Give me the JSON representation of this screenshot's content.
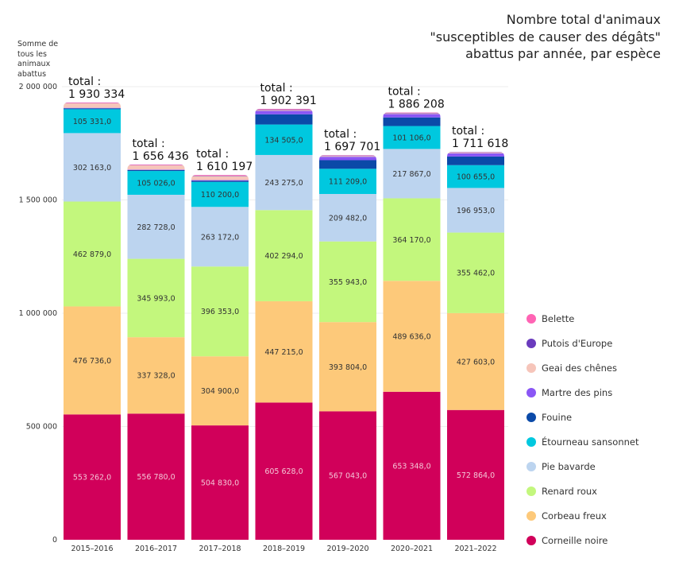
{
  "chart_data": {
    "type": "bar",
    "stacked": true,
    "title": [
      "Nombre total d'animaux",
      "\"susceptibles de causer des dégâts\"",
      "abattus par année, par espèce"
    ],
    "ylabel": "Somme de tous les animaux abattus",
    "ylim": [
      0,
      2000000
    ],
    "yticks": [
      0,
      500000,
      1000000,
      1500000,
      2000000
    ],
    "ytick_labels": [
      "0",
      "500 000",
      "1 000 000",
      "1 500 000",
      "2 000 000"
    ],
    "grid": true,
    "legend_position": "right",
    "total_prefix": "total :",
    "categories": [
      "2015–2016",
      "2016–2017",
      "2017–2018",
      "2018–2019",
      "2019–2020",
      "2020–2021",
      "2021–2022"
    ],
    "totals": [
      "1 930 334",
      "1 656 436",
      "1 610 197",
      "1 902 391",
      "1 697 701",
      "1 886 208",
      "1 711 618"
    ],
    "series": [
      {
        "name": "Corneille noire",
        "color": "#d1005a",
        "labeled": true,
        "label_color": "#f3c6d6",
        "values": [
          553262,
          556780,
          504830,
          605628,
          567043,
          653348,
          572864
        ]
      },
      {
        "name": "Corbeau freux",
        "color": "#fdc97a",
        "labeled": true,
        "label_color": "#333333",
        "values": [
          476736,
          337328,
          304900,
          447215,
          393804,
          489636,
          427603
        ]
      },
      {
        "name": "Renard roux",
        "color": "#c3f77d",
        "labeled": true,
        "label_color": "#333333",
        "values": [
          462879,
          345993,
          396353,
          402294,
          355943,
          364170,
          355462
        ]
      },
      {
        "name": "Pie bavarde",
        "color": "#bcd4ef",
        "labeled": true,
        "label_color": "#333333",
        "values": [
          302163,
          282728,
          263172,
          243275,
          209482,
          217867,
          196953
        ]
      },
      {
        "name": "Étourneau sansonnet",
        "color": "#00c8df",
        "labeled": true,
        "label_color": "#333333",
        "values": [
          105331,
          105026,
          110200,
          134505,
          111209,
          101106,
          100655
        ]
      },
      {
        "name": "Fouine",
        "color": "#0b4aa8",
        "labeled": false,
        "values": [
          4000,
          4000,
          5000,
          45000,
          38000,
          38000,
          38000
        ]
      },
      {
        "name": "Martre des pins",
        "color": "#8a56f5",
        "labeled": false,
        "values": [
          2000,
          2000,
          3000,
          15000,
          15000,
          15000,
          14000
        ]
      },
      {
        "name": "Geai des chênes",
        "color": "#f6c5ba",
        "labeled": false,
        "values": [
          20000,
          19000,
          18000,
          4000,
          3500,
          3500,
          3000
        ]
      },
      {
        "name": "Putois d'Europe",
        "color": "#6a3bbd",
        "labeled": false,
        "values": [
          1000,
          1000,
          1500,
          2500,
          2000,
          2000,
          1800
        ]
      },
      {
        "name": "Belette",
        "color": "#ff64b4",
        "labeled": false,
        "values": [
          2963,
          2581,
          3242,
          2974,
          1720,
          1581,
          1281
        ]
      }
    ]
  }
}
